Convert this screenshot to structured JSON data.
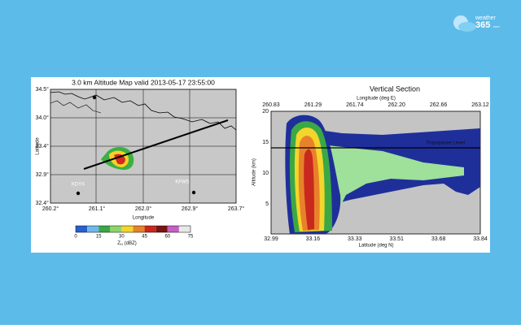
{
  "logo": {
    "word": "weather",
    "number": "365",
    "suffix": ".com"
  },
  "map": {
    "title": "3.0 km Altitude Map valid 2013-05-17 23:55:00",
    "xlabel": "Longitude",
    "ylabel": "Latitude",
    "xticks": [
      "260.2°",
      "261.1°",
      "262.0°",
      "262.9°",
      "263.7°"
    ],
    "yticks": [
      "34.5°",
      "34.0°",
      "33.4°",
      "32.9°",
      "32.4°"
    ],
    "stations": [
      "KDYX",
      "KFWS"
    ],
    "colorbar": {
      "ticks": [
        "0",
        "15",
        "30",
        "45",
        "60",
        "75"
      ],
      "label": "Z",
      "label_sub": "H",
      "label_unit": "(dBZ)"
    }
  },
  "section": {
    "title": "Vertical Section",
    "top_label": "Longitude (deg E)",
    "top_ticks": [
      "260.83",
      "261.29",
      "261.74",
      "262.20",
      "262.66",
      "263.12"
    ],
    "bottom_ticks": [
      "32.99",
      "33.16",
      "33.33",
      "33.51",
      "33.68",
      "33.84"
    ],
    "xlabel": "Latitude (deg N)",
    "ylabel": "Altitude (km)",
    "yticks": [
      "20",
      "15",
      "10",
      "5"
    ],
    "annotation": "Tropopause Level"
  }
}
